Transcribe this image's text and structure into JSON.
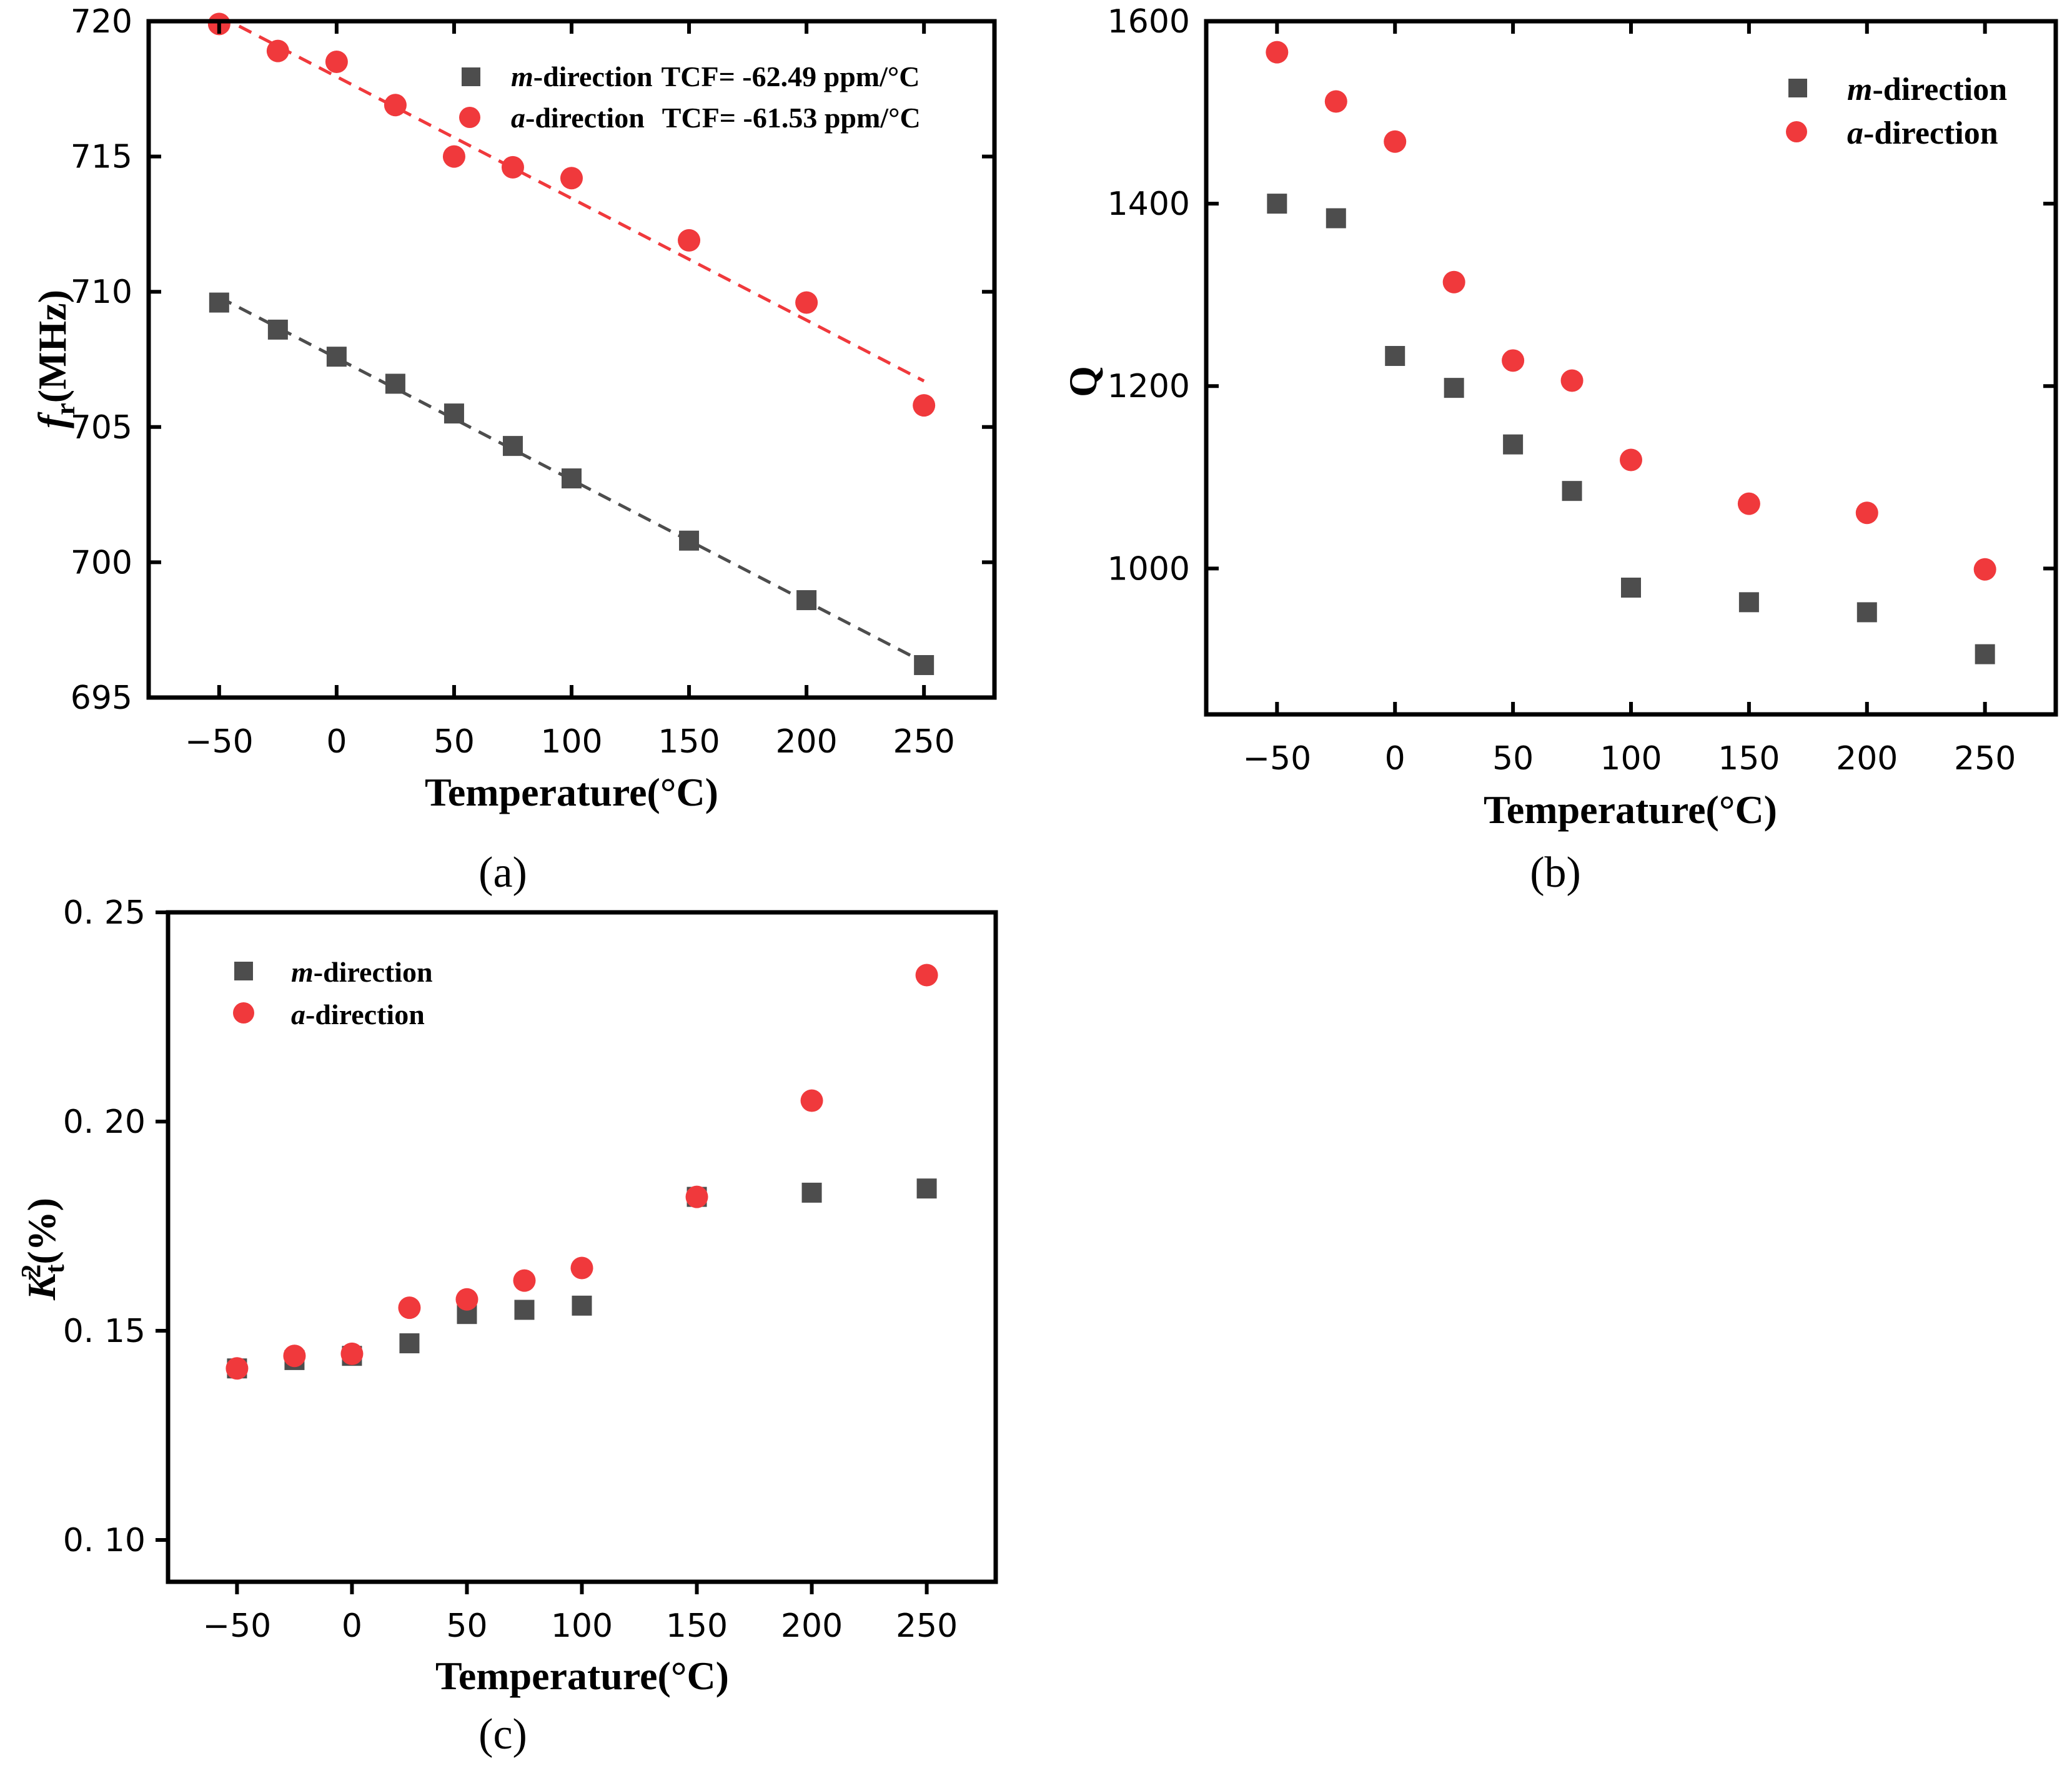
{
  "colors": {
    "m": "#4d4d4d",
    "a": "#f0393c",
    "axis": "#000000"
  },
  "chart_data": [
    {
      "id": "a",
      "type": "scatter",
      "caption": "(a)",
      "xlabel": "Temperature(°C)",
      "ylabel_main": "f",
      "ylabel_sub": "r",
      "ylabel_rest": "(MHz)",
      "xlim": [
        -80,
        280
      ],
      "ylim": [
        695,
        720
      ],
      "xticks": [
        -50,
        0,
        50,
        100,
        150,
        200,
        250
      ],
      "xtick_labels": [
        "−50",
        "0",
        "50",
        "100",
        "150",
        "200",
        "250"
      ],
      "yticks": [
        695,
        700,
        705,
        710,
        715,
        720
      ],
      "ytick_labels": [
        "695",
        "700",
        "705",
        "710",
        "715",
        "720"
      ],
      "legend_position": "top-right",
      "series": [
        {
          "key": "m",
          "marker": "square",
          "name_italic": "m",
          "name_rest": "-direction",
          "note": "TCF= -62.49 ppm/°C",
          "x": [
            -50,
            -25,
            0,
            25,
            50,
            75,
            100,
            150,
            200,
            250
          ],
          "y": [
            709.6,
            708.6,
            707.6,
            706.6,
            705.5,
            704.3,
            703.1,
            700.8,
            698.6,
            696.2
          ],
          "fit": {
            "x": [
              -50,
              250
            ],
            "y": [
              709.8,
              696.3
            ]
          }
        },
        {
          "key": "a",
          "marker": "circle",
          "name_italic": "a",
          "name_rest": "-direction",
          "note": "TCF= -61.53 ppm/°C",
          "x": [
            -50,
            -25,
            0,
            25,
            50,
            75,
            100,
            150,
            200,
            250
          ],
          "y": [
            719.9,
            718.9,
            718.5,
            716.9,
            715.0,
            714.6,
            714.2,
            711.9,
            709.6,
            705.8
          ],
          "fit": {
            "x": [
              -50,
              250
            ],
            "y": [
              720.2,
              706.7
            ]
          }
        }
      ]
    },
    {
      "id": "b",
      "type": "scatter",
      "caption": "(b)",
      "xlabel": "Temperature(°C)",
      "ylabel_main": "Q",
      "ylabel_sub": "",
      "ylabel_rest": "",
      "xlim": [
        -80,
        280
      ],
      "ylim": [
        840,
        1600
      ],
      "xticks": [
        -50,
        0,
        50,
        100,
        150,
        200,
        250
      ],
      "xtick_labels": [
        "−50",
        "0",
        "50",
        "100",
        "150",
        "200",
        "250"
      ],
      "yticks": [
        1000,
        1200,
        1400,
        1600
      ],
      "ytick_labels": [
        "1000",
        "1200",
        "1400",
        "1600"
      ],
      "legend_position": "top-right",
      "series": [
        {
          "key": "m",
          "marker": "square",
          "name_italic": "m",
          "name_rest": "-direction",
          "note": "",
          "x": [
            -50,
            -25,
            0,
            25,
            50,
            75,
            100,
            150,
            200,
            250
          ],
          "y": [
            1400,
            1384,
            1233,
            1198,
            1136,
            1085,
            979,
            963,
            952,
            906
          ]
        },
        {
          "key": "a",
          "marker": "circle",
          "name_italic": "a",
          "name_rest": "-direction",
          "note": "",
          "x": [
            -50,
            -25,
            0,
            25,
            50,
            75,
            100,
            150,
            200,
            250
          ],
          "y": [
            1566,
            1512,
            1468,
            1314,
            1228,
            1206,
            1119,
            1071,
            1061,
            999
          ]
        }
      ]
    },
    {
      "id": "c",
      "type": "scatter",
      "caption": "(c)",
      "xlabel": "Temperature(°C)",
      "ylabel_main": "K",
      "ylabel_sub": "t",
      "ylabel_sup": "2",
      "ylabel_rest": "(%)",
      "xlim": [
        -80,
        280
      ],
      "ylim": [
        0.09,
        0.25
      ],
      "xticks": [
        -50,
        0,
        50,
        100,
        150,
        200,
        250
      ],
      "xtick_labels": [
        "−50",
        "0",
        "50",
        "100",
        "150",
        "200",
        "250"
      ],
      "yticks": [
        0.1,
        0.15,
        0.2,
        0.25
      ],
      "ytick_labels": [
        "0. 10",
        "0. 15",
        "0. 20",
        "0. 25"
      ],
      "legend_position": "top-left",
      "series": [
        {
          "key": "m",
          "marker": "square",
          "name_italic": "m",
          "name_rest": "-direction",
          "note": "",
          "x": [
            -50,
            -25,
            0,
            25,
            50,
            75,
            100,
            150,
            200,
            250
          ],
          "y": [
            0.141,
            0.143,
            0.144,
            0.147,
            0.154,
            0.155,
            0.156,
            0.182,
            0.183,
            0.184
          ]
        },
        {
          "key": "a",
          "marker": "circle",
          "name_italic": "a",
          "name_rest": "-direction",
          "note": "",
          "x": [
            -50,
            -25,
            0,
            25,
            50,
            75,
            100,
            150,
            200,
            250
          ],
          "y": [
            0.141,
            0.144,
            0.1445,
            0.1555,
            0.1575,
            0.162,
            0.165,
            0.182,
            0.205,
            0.235
          ]
        }
      ]
    }
  ]
}
